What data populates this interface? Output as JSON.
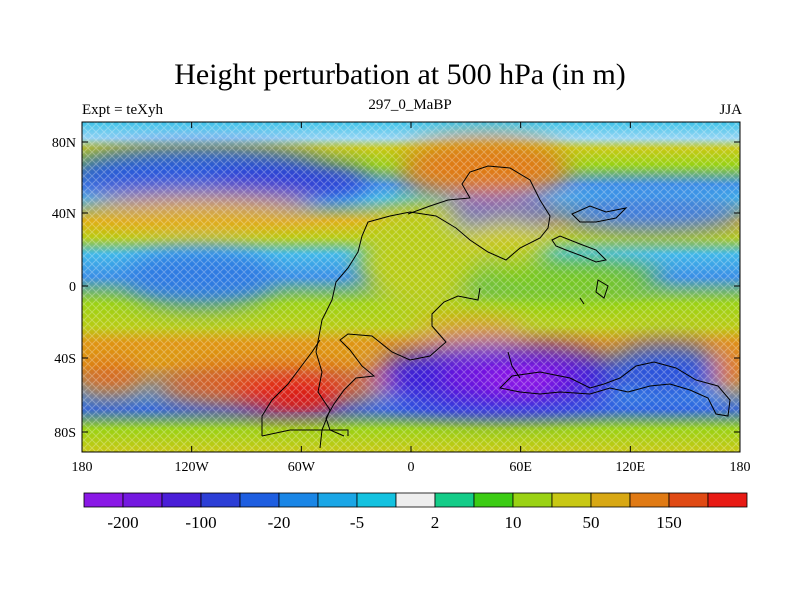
{
  "title": "Height perturbation at 500 hPa (in m)",
  "left_string": "Expt = teXyh",
  "center_string": "297_0_MaBP",
  "right_string": "JJA",
  "lat_ticks": [
    "80N",
    "40N",
    "0",
    "40S",
    "80S"
  ],
  "lon_ticks": [
    "180",
    "120W",
    "60W",
    "0",
    "60E",
    "120E",
    "180"
  ],
  "colorbar": {
    "colors": [
      "#8a18e6",
      "#7418e0",
      "#4a1ed8",
      "#2c3ed6",
      "#1e5ee0",
      "#1a86e6",
      "#1aa6e6",
      "#14c2e0",
      "#eeeeee",
      "#14cc88",
      "#3ccc14",
      "#9ad214",
      "#c8c814",
      "#d8a814",
      "#e07a14",
      "#e04a14",
      "#e81a14"
    ],
    "labels": [
      "-200",
      "-100",
      "-20",
      "-5",
      "2",
      "10",
      "50",
      "150"
    ]
  }
}
